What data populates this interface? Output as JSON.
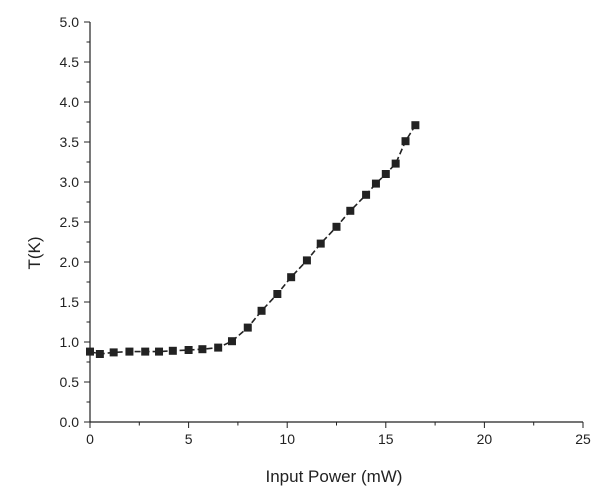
{
  "chart_data": {
    "type": "line",
    "xlabel": "Input Power (mW)",
    "ylabel": "T(K)",
    "xlim": [
      0,
      25
    ],
    "ylim": [
      0.0,
      5.0
    ],
    "x_ticks": [
      "0",
      "5",
      "10",
      "15",
      "20",
      "25"
    ],
    "y_ticks": [
      "0.0",
      "0.5",
      "1.0",
      "1.5",
      "2.0",
      "2.5",
      "3.0",
      "3.5",
      "4.0",
      "4.5",
      "5.0"
    ],
    "grid": false,
    "marker": "square",
    "line_style": "dashed",
    "series": [
      {
        "x": [
          0.0,
          0.5,
          1.2,
          2.0,
          2.8,
          3.5,
          4.2,
          5.0,
          5.7,
          6.5,
          7.2,
          8.0,
          8.7,
          9.5,
          10.2,
          11.0,
          11.7,
          12.5,
          13.2,
          14.0,
          14.5,
          15.0,
          15.5,
          16.0,
          16.5
        ],
        "y": [
          0.88,
          0.85,
          0.87,
          0.88,
          0.88,
          0.88,
          0.89,
          0.9,
          0.91,
          0.93,
          1.01,
          1.18,
          1.39,
          1.6,
          1.81,
          2.02,
          2.23,
          2.44,
          2.64,
          2.84,
          2.98,
          3.1,
          3.23,
          3.51,
          3.71
        ]
      }
    ]
  }
}
